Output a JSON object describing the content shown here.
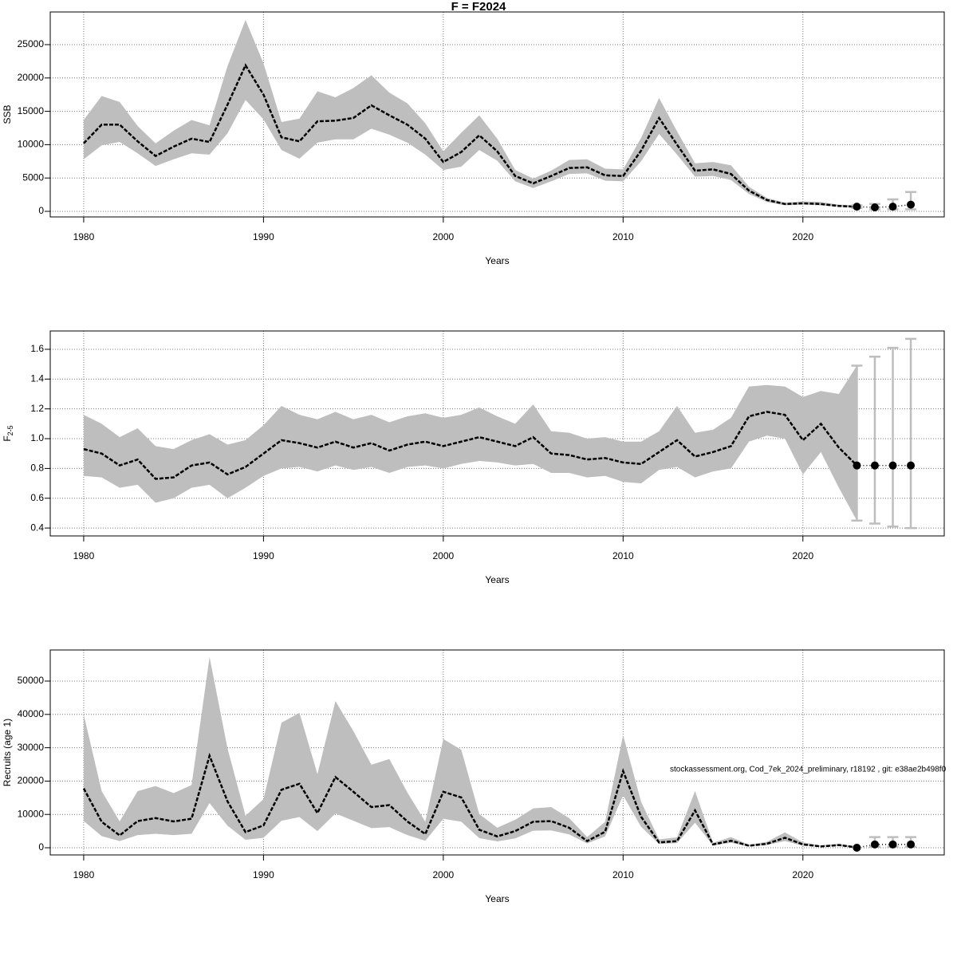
{
  "chart_data": [
    {
      "type": "line",
      "title": "F = F2024",
      "xlabel": "Years",
      "ylabel": "SSB",
      "x": [
        1980,
        1981,
        1982,
        1983,
        1984,
        1985,
        1986,
        1987,
        1988,
        1989,
        1990,
        1991,
        1992,
        1993,
        1994,
        1995,
        1996,
        1997,
        1998,
        1999,
        2000,
        2001,
        2002,
        2003,
        2004,
        2005,
        2006,
        2007,
        2008,
        2009,
        2010,
        2011,
        2012,
        2013,
        2014,
        2015,
        2016,
        2017,
        2018,
        2019,
        2020,
        2021,
        2022,
        2023
      ],
      "values": [
        10200,
        13000,
        13000,
        10500,
        8300,
        9700,
        10900,
        10400,
        16000,
        21900,
        17500,
        11100,
        10500,
        13500,
        13600,
        14000,
        15900,
        14400,
        13000,
        10900,
        7400,
        8900,
        11400,
        9000,
        5300,
        4200,
        5300,
        6500,
        6600,
        5400,
        5300,
        9100,
        14000,
        10000,
        6100,
        6300,
        5600,
        3100,
        1700,
        1100,
        1200,
        1100,
        800,
        700
      ],
      "lower": [
        7800,
        9900,
        10400,
        8700,
        6800,
        7800,
        8700,
        8500,
        11700,
        16700,
        13800,
        9200,
        7900,
        10300,
        10800,
        10800,
        12400,
        11500,
        10300,
        8500,
        6200,
        6700,
        9200,
        7600,
        4500,
        3500,
        4500,
        5600,
        5700,
        4600,
        4500,
        7500,
        11600,
        8500,
        5200,
        5300,
        4700,
        2600,
        1400,
        900,
        1000,
        900,
        700,
        500
      ],
      "upper": [
        13700,
        17300,
        16400,
        12800,
        10200,
        12100,
        13700,
        12900,
        21800,
        28700,
        22200,
        13400,
        13900,
        18000,
        17100,
        18500,
        20400,
        17800,
        16200,
        13200,
        9000,
        11800,
        14400,
        10900,
        6200,
        4900,
        6100,
        7700,
        7800,
        6400,
        6300,
        11000,
        17000,
        12000,
        7200,
        7400,
        6900,
        3700,
        2000,
        1300,
        1500,
        1400,
        1000,
        900
      ],
      "forecast": {
        "x": [
          2023,
          2024,
          2025,
          2026
        ],
        "values": [
          700,
          600,
          700,
          1000
        ],
        "lower": [
          500,
          300,
          300,
          300
        ],
        "upper": [
          900,
          1100,
          1800,
          2900
        ]
      },
      "band_color": "#bebebe",
      "line_color": "#000000",
      "bar_color": "#bebebe",
      "xlim": [
        1978.14,
        2027.86
      ],
      "xticks": [
        1980,
        1990,
        2000,
        2010,
        2020
      ],
      "ylim": [
        -837,
        29900
      ],
      "yticks": [
        0,
        5000,
        10000,
        15000,
        20000,
        25000
      ],
      "grid": true
    },
    {
      "type": "line",
      "xlabel": "Years",
      "ylabel": "F",
      "ylabel_sub": "2-5",
      "x": [
        1980,
        1981,
        1982,
        1983,
        1984,
        1985,
        1986,
        1987,
        1988,
        1989,
        1990,
        1991,
        1992,
        1993,
        1994,
        1995,
        1996,
        1997,
        1998,
        1999,
        2000,
        2001,
        2002,
        2003,
        2004,
        2005,
        2006,
        2007,
        2008,
        2009,
        2010,
        2011,
        2012,
        2013,
        2014,
        2015,
        2016,
        2017,
        2018,
        2019,
        2020,
        2021,
        2022,
        2023
      ],
      "values": [
        0.93,
        0.9,
        0.82,
        0.86,
        0.73,
        0.74,
        0.82,
        0.84,
        0.76,
        0.81,
        0.9,
        0.99,
        0.97,
        0.94,
        0.98,
        0.94,
        0.97,
        0.92,
        0.96,
        0.98,
        0.95,
        0.98,
        1.01,
        0.98,
        0.95,
        1.01,
        0.9,
        0.89,
        0.86,
        0.87,
        0.84,
        0.83,
        0.91,
        0.99,
        0.88,
        0.91,
        0.95,
        1.15,
        1.18,
        1.16,
        0.99,
        1.1,
        0.94,
        0.82
      ],
      "lower": [
        0.75,
        0.74,
        0.67,
        0.69,
        0.57,
        0.6,
        0.67,
        0.69,
        0.6,
        0.67,
        0.75,
        0.8,
        0.81,
        0.78,
        0.82,
        0.79,
        0.81,
        0.77,
        0.81,
        0.82,
        0.8,
        0.83,
        0.85,
        0.84,
        0.82,
        0.83,
        0.77,
        0.77,
        0.74,
        0.75,
        0.71,
        0.7,
        0.79,
        0.81,
        0.74,
        0.78,
        0.8,
        0.98,
        1.02,
        1.0,
        0.76,
        0.91,
        0.67,
        0.45
      ],
      "upper": [
        1.16,
        1.1,
        1.01,
        1.07,
        0.95,
        0.93,
        0.99,
        1.03,
        0.96,
        0.99,
        1.09,
        1.22,
        1.16,
        1.13,
        1.18,
        1.13,
        1.16,
        1.11,
        1.15,
        1.17,
        1.14,
        1.16,
        1.21,
        1.15,
        1.1,
        1.23,
        1.05,
        1.04,
        1.0,
        1.01,
        0.98,
        0.98,
        1.05,
        1.22,
        1.04,
        1.06,
        1.14,
        1.35,
        1.36,
        1.35,
        1.28,
        1.32,
        1.3,
        1.49
      ],
      "forecast": {
        "x": [
          2023,
          2024,
          2025,
          2026
        ],
        "values": [
          0.82,
          0.82,
          0.82,
          0.82
        ],
        "lower": [
          0.45,
          0.43,
          0.41,
          0.4
        ],
        "upper": [
          1.49,
          1.55,
          1.61,
          1.67
        ]
      },
      "band_color": "#bebebe",
      "line_color": "#000000",
      "bar_color": "#bebebe",
      "xlim": [
        1978.14,
        2027.86
      ],
      "xticks": [
        1980,
        1990,
        2000,
        2010,
        2020
      ],
      "ylim": [
        0.347,
        1.723
      ],
      "yticks": [
        0.4,
        0.6,
        0.8,
        {
          "value": 1,
          "label": "1.0"
        },
        1.2,
        1.4,
        1.6
      ],
      "grid": true
    },
    {
      "type": "line",
      "xlabel": "Years",
      "ylabel": "Recruits (age 1)",
      "annotation": "stockassessment.org, Cod_7ek_2024_preliminary, r18192 , git: e38ae2b498f0",
      "x": [
        1980,
        1981,
        1982,
        1983,
        1984,
        1985,
        1986,
        1987,
        1988,
        1989,
        1990,
        1991,
        1992,
        1993,
        1994,
        1995,
        1996,
        1997,
        1998,
        1999,
        2000,
        2001,
        2002,
        2003,
        2004,
        2005,
        2006,
        2007,
        2008,
        2009,
        2010,
        2011,
        2012,
        2013,
        2014,
        2015,
        2016,
        2017,
        2018,
        2019,
        2020,
        2021,
        2022,
        2023
      ],
      "values": [
        17800,
        7800,
        3700,
        8000,
        8900,
        7900,
        8700,
        27600,
        13900,
        4700,
        6700,
        17400,
        19200,
        10400,
        21200,
        16800,
        12200,
        12800,
        7900,
        4100,
        16800,
        15100,
        5400,
        3400,
        5000,
        7800,
        8000,
        6000,
        2000,
        4800,
        23000,
        9300,
        1600,
        2000,
        11200,
        1000,
        2100,
        600,
        1200,
        3000,
        1000,
        400,
        800,
        100
      ],
      "lower": [
        8000,
        3500,
        2000,
        3800,
        4200,
        3800,
        4200,
        13400,
        6600,
        2400,
        3000,
        8100,
        9200,
        5000,
        10300,
        8100,
        5900,
        6200,
        3800,
        2100,
        8700,
        7800,
        2900,
        1900,
        2800,
        5100,
        5200,
        4000,
        1300,
        3400,
        15700,
        6300,
        1100,
        1400,
        7500,
        700,
        1500,
        400,
        800,
        2000,
        600,
        300,
        500,
        0
      ],
      "upper": [
        40000,
        17000,
        7900,
        17000,
        18500,
        16400,
        18800,
        57200,
        29800,
        9600,
        14600,
        37500,
        40500,
        22100,
        44000,
        35000,
        24900,
        26600,
        16600,
        7800,
        32600,
        29400,
        10100,
        6000,
        8400,
        11800,
        12200,
        8900,
        3200,
        7800,
        33800,
        13800,
        2500,
        3100,
        17000,
        1500,
        3200,
        900,
        1800,
        4600,
        1600,
        700,
        1200,
        400
      ],
      "forecast": {
        "x": [
          2023,
          2024,
          2025,
          2026
        ],
        "values": [
          0,
          1000,
          1000,
          1000
        ],
        "lower": [
          null,
          300,
          300,
          300
        ],
        "upper": [
          null,
          3200,
          3200,
          3200
        ]
      },
      "band_color": "#bebebe",
      "line_color": "#000000",
      "bar_color": "#bebebe",
      "xlim": [
        1978.14,
        2027.86
      ],
      "xticks": [
        1980,
        1990,
        2000,
        2010,
        2020
      ],
      "ylim": [
        -2153,
        59330
      ],
      "yticks": [
        0,
        10000,
        20000,
        30000,
        40000,
        50000
      ],
      "grid": true
    }
  ]
}
